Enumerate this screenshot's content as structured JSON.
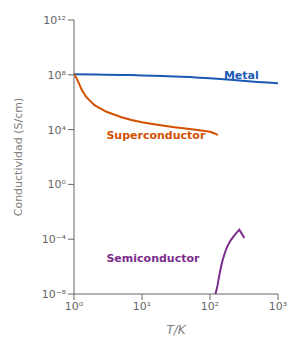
{
  "chart_data": {
    "type": "line",
    "xlabel": "T/K",
    "ylabel": "Conductividad (S/cm)",
    "log": true,
    "grid": false,
    "xlim": [
      1,
      1000
    ],
    "ylim": [
      1e-08,
      1000000000000.0
    ],
    "xticks": [
      {
        "value": 1,
        "label": "10⁰"
      },
      {
        "value": 10,
        "label": "10¹"
      },
      {
        "value": 100,
        "label": "10²"
      },
      {
        "value": 1000,
        "label": "10³"
      }
    ],
    "yticks": [
      {
        "value": 1e-08,
        "label": "10⁻⁸"
      },
      {
        "value": 0.0001,
        "label": "10⁻⁴"
      },
      {
        "value": 1,
        "label": "10⁰"
      },
      {
        "value": 10000.0,
        "label": "10⁴"
      },
      {
        "value": 100000000.0,
        "label": "10⁸"
      },
      {
        "value": 1000000000000.0,
        "label": "10¹²"
      }
    ],
    "series": [
      {
        "color": "#1a5ab5",
        "x": [
          1,
          2,
          3,
          5,
          7,
          10,
          20,
          30,
          50,
          70,
          100,
          200,
          300,
          500,
          700,
          1000
        ],
        "values": [
          110000000.0,
          105000000.0,
          102000000.0,
          98000000.0,
          95000000.0,
          90000000.0,
          82000000.0,
          76000000.0,
          68000000.0,
          62000000.0,
          56000000.0,
          44000000.0,
          37000000.0,
          30000000.0,
          27000000.0,
          24000000.0
        ]
      },
      {
        "color": "#d45000",
        "x": [
          1,
          1.05,
          1.1,
          1.2,
          1.3,
          1.5,
          2,
          3,
          5,
          7,
          10,
          15,
          20,
          30,
          50,
          70,
          100,
          120,
          130
        ],
        "values": [
          120000000.0,
          80000000.0,
          50000000.0,
          20000000.0,
          8000000.0,
          2500000.0,
          600000.0,
          200000.0,
          80000.0,
          50000.0,
          35000.0,
          25000.0,
          20000.0,
          15000.0,
          11000.0,
          9000.0,
          7000.0,
          5000.0,
          4000.0
        ]
      },
      {
        "color": "#7b2d8b",
        "x": [
          120,
          125,
          130,
          135,
          140,
          145,
          150,
          160,
          170,
          180,
          200,
          230,
          270,
          320
        ],
        "values": [
          1e-08,
          2e-08,
          5e-08,
          1.5e-07,
          4e-07,
          9e-07,
          2e-06,
          6e-06,
          1.5e-05,
          3e-05,
          8e-05,
          0.0002,
          0.0005,
          0.00012
        ]
      }
    ],
    "annotations": [
      {
        "text": "Metal",
        "x": 160,
        "y": 50000000.0,
        "color": "#1a5ab5"
      },
      {
        "text": "Superconductor",
        "x": 3,
        "y": 2000.0,
        "color": "#d45000"
      },
      {
        "text": "Semiconductor",
        "x": 3,
        "y": 2e-06,
        "color": "#7b2d8b"
      }
    ]
  }
}
